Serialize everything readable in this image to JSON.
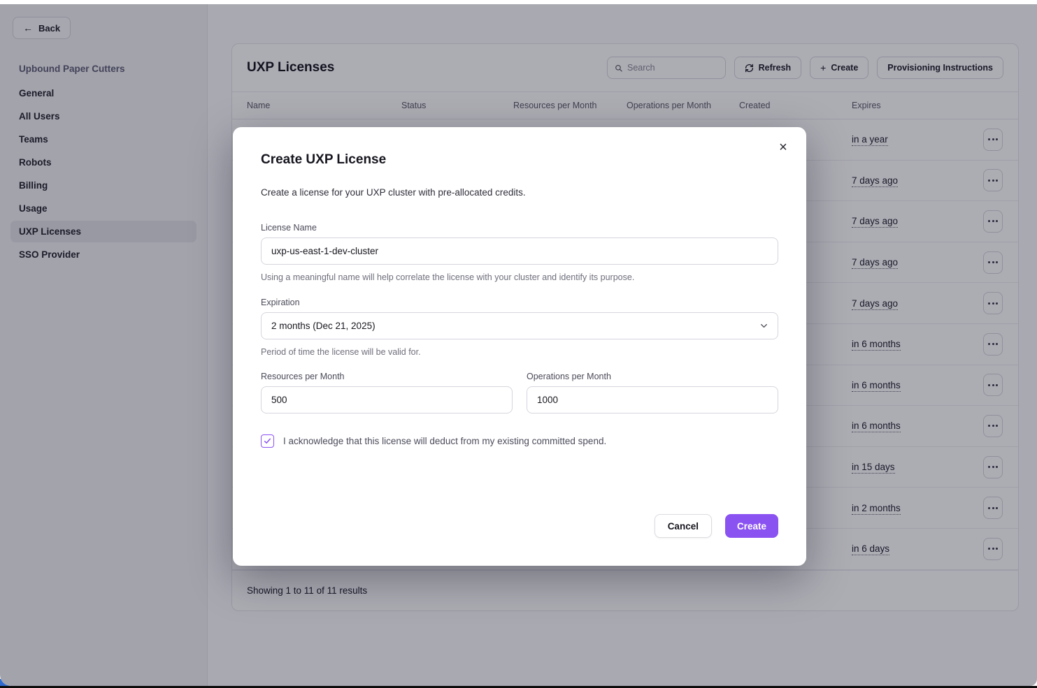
{
  "colors": {
    "accent": "#8b52f2",
    "corner_blue": "#2e6ad0"
  },
  "window": {
    "back_label": "Back"
  },
  "sidebar": {
    "org_name": "Upbound Paper Cutters",
    "selected": "UXP Licenses",
    "items": [
      "General",
      "All Users",
      "Teams",
      "Robots",
      "Billing",
      "Usage",
      "UXP Licenses",
      "SSO Provider"
    ]
  },
  "licenses_panel": {
    "title": "UXP Licenses",
    "search_placeholder": "Search",
    "refresh_label": "Refresh",
    "create_label": "Create",
    "provisioning_label": "Provisioning Instructions",
    "columns": [
      "Name",
      "Status",
      "Resources per Month",
      "Operations per Month",
      "Created",
      "Expires"
    ],
    "rows": [
      {
        "expires": "in a year"
      },
      {
        "expires": "7 days ago"
      },
      {
        "expires": "7 days ago"
      },
      {
        "expires": "7 days ago"
      },
      {
        "expires": "7 days ago"
      },
      {
        "expires": "in 6 months"
      },
      {
        "expires": "in 6 months"
      },
      {
        "expires": "in 6 months"
      },
      {
        "expires": "in 15 days"
      },
      {
        "expires": "in 2 months"
      },
      {
        "expires": "in 6 days"
      }
    ],
    "footer": "Showing 1 to 11 of 11 results"
  },
  "modal": {
    "title": "Create UXP License",
    "description": "Create a license for your UXP cluster with pre-allocated credits.",
    "close_glyph": "×",
    "license_name": {
      "label": "License Name",
      "value": "uxp-us-east-1-dev-cluster",
      "helper": "Using a meaningful name will help correlate the license with your cluster and identify its purpose."
    },
    "expiration": {
      "label": "Expiration",
      "value": "2 months (Dec 21, 2025)",
      "helper": "Period of time the license will be valid for."
    },
    "resources": {
      "label": "Resources per Month",
      "value": "500"
    },
    "operations": {
      "label": "Operations per Month",
      "value": "1000"
    },
    "acknowledgement": "I acknowledge that this license will deduct from my existing committed spend.",
    "acknowledge_checked": true,
    "cancel_label": "Cancel",
    "create_label": "Create"
  },
  "icons": {
    "back_arrow": "←",
    "plus": "+"
  }
}
